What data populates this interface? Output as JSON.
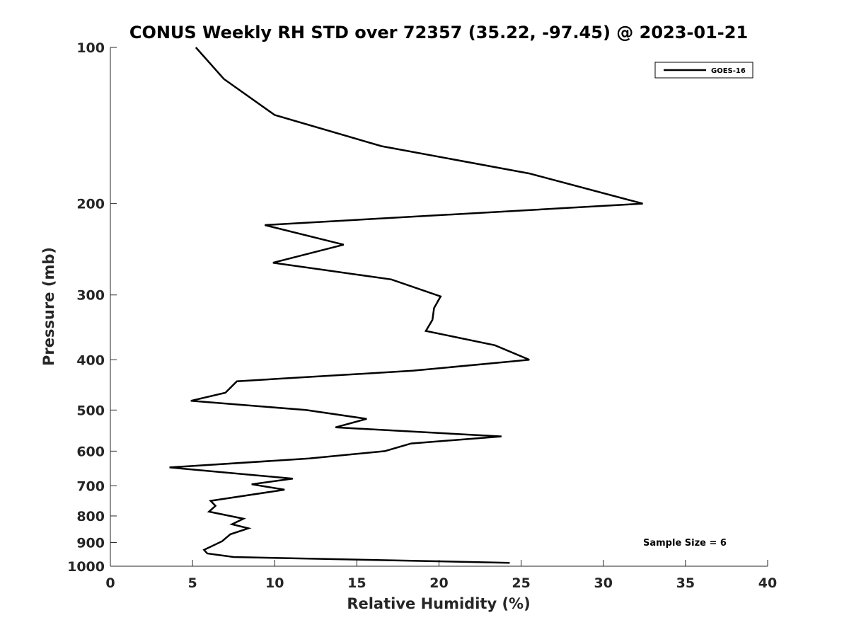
{
  "chart_data": {
    "type": "line",
    "title": "CONUS Weekly RH STD over 72357 (35.22, -97.45) @ 2023-01-21",
    "xlabel": "Relative Humidity (%)",
    "ylabel": "Pressure (mb)",
    "xlim": [
      0,
      40
    ],
    "ylim": [
      100,
      1000
    ],
    "yscale": "log",
    "y_reversed": true,
    "grid": false,
    "legend_position": "top-right",
    "x_ticks": [
      0,
      5,
      10,
      15,
      20,
      25,
      30,
      35,
      40
    ],
    "x_tick_labels": [
      "0",
      "5",
      "10",
      "15",
      "20",
      "25",
      "30",
      "35",
      "40"
    ],
    "y_ticks": [
      100,
      200,
      300,
      400,
      500,
      600,
      700,
      800,
      900,
      1000
    ],
    "y_tick_labels": [
      "100",
      "200",
      "300",
      "400",
      "500",
      "600",
      "700",
      "800",
      "900",
      "1000"
    ],
    "series": [
      {
        "name": "GOES-16",
        "color": "#000000",
        "x": [
          5.2,
          6.9,
          10.0,
          16.5,
          25.5,
          32.4,
          9.4,
          14.2,
          9.9,
          17.1,
          20.1,
          19.7,
          19.6,
          19.2,
          23.4,
          25.5,
          18.4,
          7.7,
          7.0,
          4.9,
          11.9,
          15.6,
          13.7,
          23.8,
          18.3,
          16.7,
          12.1,
          3.6,
          11.1,
          8.6,
          10.6,
          6.1,
          6.4,
          6.0,
          8.1,
          7.4,
          8.4,
          7.3,
          6.8,
          5.7,
          5.9,
          7.5,
          24.3
        ],
        "y": [
          100,
          115,
          135,
          155,
          175,
          200,
          220,
          240,
          260,
          280,
          302,
          318,
          335,
          352,
          375,
          400,
          420,
          440,
          463,
          480,
          500,
          520,
          540,
          562,
          580,
          600,
          620,
          645,
          678,
          695,
          712,
          748,
          765,
          785,
          810,
          830,
          845,
          868,
          895,
          930,
          945,
          960,
          985
        ]
      }
    ],
    "annotations": [
      "Sample Size = 6"
    ]
  }
}
